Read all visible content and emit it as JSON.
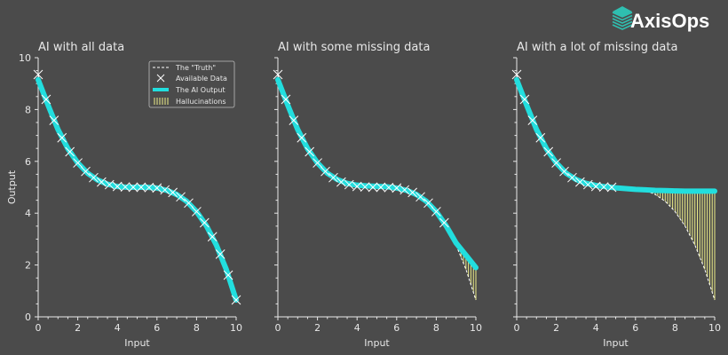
{
  "brand": {
    "name": "AxisOps",
    "logo_color": "#2fbfb0"
  },
  "colors": {
    "background": "#4b4b4b",
    "ai_output": "#22dede",
    "truth": "#ffffff",
    "data": "#ffffff",
    "hallucination": "#eeee88",
    "axis": "#e8e8e8"
  },
  "legend": {
    "placement": "top-right of first panel",
    "items": [
      "The \"Truth\"",
      "Available Data",
      "The AI Output",
      "Hallucinations"
    ]
  },
  "chart_data": [
    {
      "type": "line",
      "title": "AI with all data",
      "xlabel": "Input",
      "ylabel": "Output",
      "xlim": [
        0,
        10
      ],
      "ylim": [
        0,
        10
      ],
      "xticks": [
        "0",
        "2",
        "4",
        "6",
        "8",
        "10"
      ],
      "yticks": [
        "0",
        "2",
        "4",
        "6",
        "8",
        "10"
      ],
      "grid": false,
      "truth": {
        "x": [
          0,
          0.5,
          1,
          1.5,
          2,
          2.5,
          3,
          3.5,
          4,
          4.5,
          5,
          5.5,
          6,
          6.5,
          7,
          7.5,
          8,
          8.5,
          9,
          9.5,
          10
        ],
        "y": [
          9.35,
          8.17,
          7.23,
          6.49,
          5.94,
          5.54,
          5.28,
          5.12,
          5.03,
          5.0,
          5.0,
          5.0,
          4.97,
          4.88,
          4.72,
          4.46,
          4.06,
          3.51,
          2.77,
          1.83,
          0.65
        ]
      },
      "available_data": {
        "x": [
          0,
          0.4,
          0.8,
          1.2,
          1.6,
          2.0,
          2.4,
          2.8,
          3.2,
          3.6,
          4.0,
          4.4,
          4.8,
          5.2,
          5.6,
          6.0,
          6.4,
          6.8,
          7.2,
          7.6,
          8.0,
          8.4,
          8.8,
          9.2,
          9.6,
          10.0
        ],
        "y": [
          9.35,
          8.39,
          7.58,
          6.91,
          6.37,
          5.94,
          5.61,
          5.37,
          5.2,
          5.1,
          5.03,
          5.01,
          5.0,
          5.0,
          4.99,
          4.97,
          4.9,
          4.8,
          4.63,
          4.39,
          4.06,
          3.63,
          3.09,
          2.42,
          1.61,
          0.65
        ]
      },
      "ai_output": {
        "x": [
          0,
          0.5,
          1,
          1.5,
          2,
          2.5,
          3,
          3.5,
          4,
          4.5,
          5,
          5.5,
          6,
          6.5,
          7,
          7.5,
          8,
          8.5,
          9,
          9.5,
          10
        ],
        "y": [
          9.15,
          8.17,
          7.23,
          6.49,
          5.94,
          5.54,
          5.28,
          5.12,
          5.03,
          5.0,
          5.0,
          5.0,
          4.97,
          4.88,
          4.72,
          4.46,
          4.06,
          3.51,
          2.77,
          1.83,
          0.65
        ]
      }
    },
    {
      "type": "line",
      "title": "AI with some missing data",
      "xlabel": "Input",
      "ylabel": "",
      "xlim": [
        0,
        10
      ],
      "ylim": [
        0,
        10
      ],
      "xticks": [
        "0",
        "2",
        "4",
        "6",
        "8",
        "10"
      ],
      "yticks": [],
      "grid": false,
      "truth": {
        "x": [
          0,
          0.5,
          1,
          1.5,
          2,
          2.5,
          3,
          3.5,
          4,
          4.5,
          5,
          5.5,
          6,
          6.5,
          7,
          7.5,
          8,
          8.5,
          9,
          9.5,
          10
        ],
        "y": [
          9.35,
          8.17,
          7.23,
          6.49,
          5.94,
          5.54,
          5.28,
          5.12,
          5.03,
          5.0,
          5.0,
          5.0,
          4.97,
          4.88,
          4.72,
          4.46,
          4.06,
          3.51,
          2.77,
          1.83,
          0.65
        ]
      },
      "available_data": {
        "x": [
          0,
          0.4,
          0.8,
          1.2,
          1.6,
          2.0,
          2.4,
          2.8,
          3.2,
          3.6,
          4.0,
          4.4,
          4.8,
          5.2,
          5.6,
          6.0,
          6.4,
          6.8,
          7.2,
          7.6,
          8.0,
          8.4
        ],
        "y": [
          9.35,
          8.39,
          7.58,
          6.91,
          6.37,
          5.94,
          5.61,
          5.37,
          5.2,
          5.1,
          5.03,
          5.01,
          5.0,
          5.0,
          4.99,
          4.97,
          4.9,
          4.8,
          4.63,
          4.39,
          4.06,
          3.63
        ]
      },
      "ai_output": {
        "x": [
          0,
          0.5,
          1,
          1.5,
          2,
          2.5,
          3,
          3.5,
          4,
          4.5,
          5,
          5.5,
          6,
          6.5,
          7,
          7.5,
          8,
          8.5,
          9,
          9.5,
          10
        ],
        "y": [
          9.15,
          8.17,
          7.23,
          6.49,
          5.94,
          5.54,
          5.3,
          5.15,
          5.08,
          5.05,
          5.04,
          5.02,
          4.97,
          4.88,
          4.72,
          4.46,
          4.06,
          3.51,
          2.85,
          2.38,
          1.9
        ]
      }
    },
    {
      "type": "line",
      "title": "AI with a lot of missing data",
      "xlabel": "Input",
      "ylabel": "",
      "xlim": [
        0,
        10
      ],
      "ylim": [
        0,
        10
      ],
      "xticks": [
        "0",
        "2",
        "4",
        "6",
        "8",
        "10"
      ],
      "yticks": [],
      "grid": false,
      "truth": {
        "x": [
          0,
          0.5,
          1,
          1.5,
          2,
          2.5,
          3,
          3.5,
          4,
          4.5,
          5,
          5.5,
          6,
          6.5,
          7,
          7.5,
          8,
          8.5,
          9,
          9.5,
          10
        ],
        "y": [
          9.35,
          8.17,
          7.23,
          6.49,
          5.94,
          5.54,
          5.28,
          5.12,
          5.03,
          5.0,
          5.0,
          5.0,
          4.97,
          4.88,
          4.72,
          4.46,
          4.06,
          3.51,
          2.77,
          1.83,
          0.65
        ]
      },
      "available_data": {
        "x": [
          0,
          0.4,
          0.8,
          1.2,
          1.6,
          2.0,
          2.4,
          2.8,
          3.2,
          3.6,
          4.0,
          4.4,
          4.8
        ],
        "y": [
          9.35,
          8.39,
          7.58,
          6.91,
          6.37,
          5.94,
          5.61,
          5.37,
          5.2,
          5.1,
          5.03,
          5.01,
          5.0
        ]
      },
      "ai_output": {
        "x": [
          0,
          0.5,
          1,
          1.5,
          2,
          2.5,
          3,
          3.5,
          4,
          4.5,
          5,
          5.5,
          6,
          6.5,
          7,
          7.5,
          8,
          8.5,
          9,
          9.5,
          10
        ],
        "y": [
          9.15,
          8.17,
          7.23,
          6.49,
          5.94,
          5.54,
          5.3,
          5.15,
          5.07,
          5.02,
          4.98,
          4.95,
          4.92,
          4.9,
          4.88,
          4.87,
          4.86,
          4.85,
          4.85,
          4.85,
          4.85
        ]
      }
    }
  ]
}
